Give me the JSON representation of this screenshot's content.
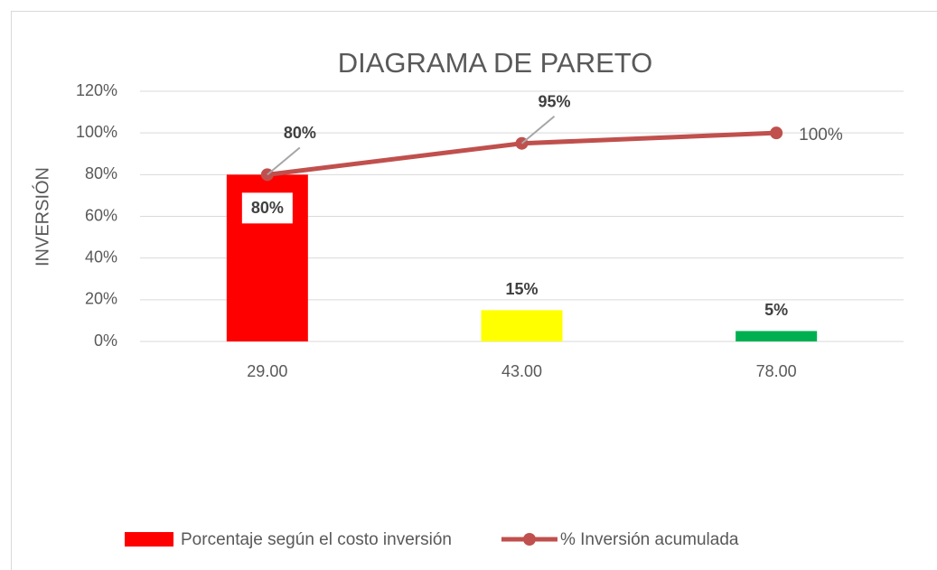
{
  "chart_data": {
    "type": "combo",
    "title": "DIAGRAMA DE PARETO",
    "y_label": "INVERSIÓN",
    "categories": [
      "29.00",
      "43.00",
      "78.00"
    ],
    "series": [
      {
        "name": "Porcentaje según el costo inversión",
        "type": "bar",
        "color": "#ff0000",
        "colors": [
          "#ff0000",
          "#ffff00",
          "#00b050"
        ],
        "values": [
          80,
          15,
          5
        ],
        "value_labels": [
          "80%",
          "15%",
          "5%"
        ]
      },
      {
        "name": "% Inversión acumulada",
        "type": "line",
        "color": "#c0504d",
        "values": [
          80,
          95,
          100
        ],
        "value_labels": [
          "80%",
          "95%",
          "100%"
        ]
      }
    ],
    "ylim": [
      0,
      120
    ],
    "yticks": [
      {
        "value": 0,
        "label": "0%"
      },
      {
        "value": 20,
        "label": "20%"
      },
      {
        "value": 40,
        "label": "40%"
      },
      {
        "value": 60,
        "label": "60%"
      },
      {
        "value": 80,
        "label": "80%"
      },
      {
        "value": 100,
        "label": "100%"
      },
      {
        "value": 120,
        "label": "120%"
      }
    ],
    "grid": true,
    "legend": "bottom"
  }
}
